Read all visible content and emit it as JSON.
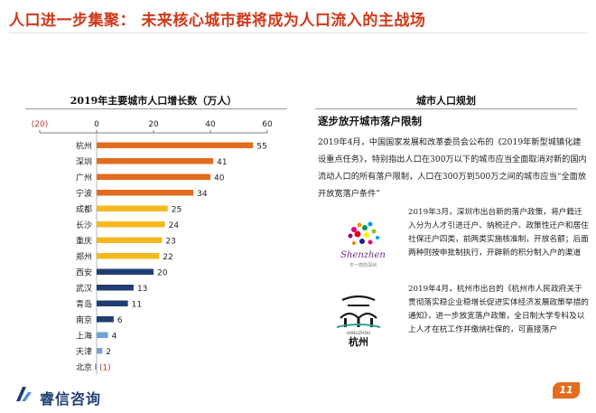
{
  "header": {
    "title": "人口进一步集聚：  未来核心城市群将成为人口流入的主战场"
  },
  "chart_section": {
    "title": "2019年主要城市人口增长数（万人）"
  },
  "chart_data": {
    "type": "bar",
    "orientation": "horizontal",
    "title": "2019年主要城市人口增长数（万人）",
    "categories": [
      "杭州",
      "深圳",
      "广州",
      "宁波",
      "成都",
      "长沙",
      "重庆",
      "郑州",
      "西安",
      "武汉",
      "青岛",
      "南京",
      "上海",
      "天津",
      "北京"
    ],
    "values": [
      55,
      41,
      40,
      34,
      25,
      24,
      23,
      22,
      20,
      13,
      11,
      6,
      4,
      2,
      -0.6
    ],
    "data_labels": [
      "55",
      "41",
      "40",
      "34",
      "25",
      "24",
      "23",
      "22",
      "20",
      "13",
      "11",
      "6",
      "4",
      "2",
      "(1)"
    ],
    "axis_ticks": [
      "(20)",
      "0",
      "20",
      "40",
      "60"
    ],
    "xlim": [
      -20,
      60
    ],
    "axis_position": "top",
    "grid": false,
    "colors": [
      "#e36c1e",
      "#e36c1e",
      "#e36c1e",
      "#e36c1e",
      "#f4b820",
      "#f4b820",
      "#f4b820",
      "#f4b820",
      "#1f3f73",
      "#1f3f73",
      "#1f3f73",
      "#1f3f73",
      "#6fa3d6",
      "#6fa3d6",
      "#6fa3d6"
    ]
  },
  "right_panel": {
    "title": "城市人口规划",
    "subheading": "逐步放开城市落户限制",
    "para1": "2019年4月，中国国家发展和改革委员会公布的《2019年新型城镇化建设重点任务》，特别指出人口在300万以下的城市应当全面取消对新的国内流动人口的所有落户限制，人口在300万到500万之间的城市应当“全面放开放宽落户条件”",
    "para2": "2019年3月，深圳市出台新的落户政策，将户籍迁入分为人才引进迁户、纳税迁户、政策性迁户和居住社保迁户四类，前两类实施核准制，开放名额；后面两种则按申批制执行，开辟新的积分制入户的渠道",
    "para3": "2019年4月，杭州市出台的《杭州市人民政府关于贯彻落实稳企业稳增长促进实体经济发展政策举措的通知》，进一步放宽落户政策，全日制大学专科及以上人才在杭工作并缴纳社保的，可直接落户",
    "logo_shenzhen": "Shenzhen",
    "logo_shenzhen_cn": "不一样的深圳",
    "logo_hangzhou_en": "HANGZHOU",
    "logo_hangzhou": "杭州"
  },
  "footer": {
    "company": "睿信咨询",
    "page_number": "11"
  },
  "colors": {
    "title_red": "#d0391a",
    "orange": "#e36c1e",
    "yellow": "#f4b820",
    "navy": "#1f3f73",
    "light_blue": "#6fa3d6"
  }
}
